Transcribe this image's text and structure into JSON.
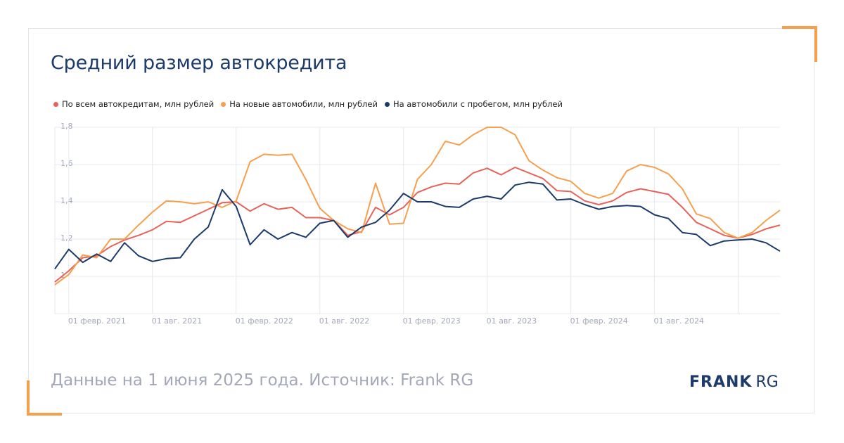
{
  "title": "Средний размер автокредита",
  "footer": {
    "source": "Данные на 1 июня 2025 года. Источник: Frank RG",
    "logo_bold": "FRANK",
    "logo_light": "RG"
  },
  "colors": {
    "accent": "#f6a04d",
    "navy": "#1c3a6a",
    "grid": "#e3e5ee",
    "muted": "#a3a7b8"
  },
  "chart_data": {
    "type": "line",
    "x": [
      "2021-01",
      "2021-02",
      "2021-03",
      "2021-04",
      "2021-05",
      "2021-06",
      "2021-07",
      "2021-08",
      "2021-09",
      "2021-10",
      "2021-11",
      "2021-12",
      "2022-01",
      "2022-02",
      "2022-03",
      "2022-04",
      "2022-05",
      "2022-06",
      "2022-07",
      "2022-08",
      "2022-09",
      "2022-10",
      "2022-11",
      "2022-12",
      "2023-01",
      "2023-02",
      "2023-03",
      "2023-04",
      "2023-05",
      "2023-06",
      "2023-07",
      "2023-08",
      "2023-09",
      "2023-10",
      "2023-11",
      "2023-12",
      "2024-01",
      "2024-02",
      "2024-03",
      "2024-04",
      "2024-05",
      "2024-06",
      "2024-07",
      "2024-08",
      "2024-09",
      "2024-10",
      "2024-11",
      "2024-12",
      "2025-01",
      "2025-02",
      "2025-03",
      "2025-04",
      "2025-05"
    ],
    "x_tick_labels": [
      "01 февр. 2021",
      "01 авг. 2021",
      "01 февр. 2022",
      "01 авг. 2022",
      "01 февр. 2023",
      "01 авг. 2023",
      "01 февр. 2024",
      "01 авг. 2024"
    ],
    "y_tick_labels": [
      "1,8",
      "1,6",
      "1,4",
      "1,2",
      "1"
    ],
    "ylim": [
      0.8,
      1.8
    ],
    "grid": true,
    "legend_position": "top-left",
    "series": [
      {
        "name": "По всем автокредитам, млн рублей",
        "color": "#e8625a",
        "values": [
          0.97,
          1.03,
          1.1,
          1.11,
          1.16,
          1.195,
          1.22,
          1.25,
          1.295,
          1.29,
          1.325,
          1.36,
          1.395,
          1.4,
          1.35,
          1.39,
          1.36,
          1.37,
          1.315,
          1.315,
          1.3,
          1.22,
          1.24,
          1.37,
          1.33,
          1.37,
          1.45,
          1.48,
          1.5,
          1.495,
          1.555,
          1.58,
          1.545,
          1.585,
          1.555,
          1.525,
          1.46,
          1.455,
          1.405,
          1.385,
          1.405,
          1.45,
          1.47,
          1.455,
          1.44,
          1.37,
          1.29,
          1.255,
          1.22,
          1.205,
          1.225,
          1.255,
          1.275
        ]
      },
      {
        "name": "На новые автомобили, млн рублей",
        "color": "#f6a04d",
        "values": [
          0.955,
          1.01,
          1.115,
          1.1,
          1.2,
          1.2,
          1.275,
          1.345,
          1.405,
          1.4,
          1.39,
          1.4,
          1.37,
          1.405,
          1.615,
          1.655,
          1.65,
          1.655,
          1.52,
          1.365,
          1.3,
          1.255,
          1.235,
          1.5,
          1.28,
          1.285,
          1.52,
          1.6,
          1.725,
          1.705,
          1.76,
          1.8,
          1.8,
          1.76,
          1.62,
          1.57,
          1.53,
          1.51,
          1.445,
          1.42,
          1.445,
          1.565,
          1.6,
          1.585,
          1.55,
          1.47,
          1.335,
          1.31,
          1.235,
          1.205,
          1.235,
          1.3,
          1.355
        ]
      },
      {
        "name": "На автомобили с пробегом, млн рублей",
        "color": "#1c3a6a",
        "values": [
          1.04,
          1.145,
          1.075,
          1.12,
          1.08,
          1.18,
          1.11,
          1.08,
          1.095,
          1.1,
          1.2,
          1.265,
          1.465,
          1.375,
          1.17,
          1.25,
          1.2,
          1.235,
          1.21,
          1.285,
          1.3,
          1.21,
          1.265,
          1.29,
          1.355,
          1.445,
          1.4,
          1.4,
          1.375,
          1.37,
          1.415,
          1.43,
          1.415,
          1.49,
          1.505,
          1.495,
          1.41,
          1.415,
          1.385,
          1.36,
          1.375,
          1.38,
          1.375,
          1.33,
          1.31,
          1.235,
          1.225,
          1.165,
          1.19,
          1.195,
          1.2,
          1.18,
          1.135
        ]
      }
    ]
  }
}
